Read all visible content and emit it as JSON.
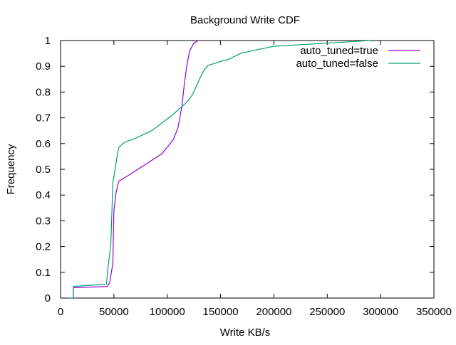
{
  "chart_data": {
    "type": "line",
    "title": "Background Write CDF",
    "xlabel": "Write KB/s",
    "ylabel": "Frequency",
    "xlim": [
      0,
      350000
    ],
    "ylim": [
      0,
      1
    ],
    "xticks": [
      "0",
      "50000",
      "100000",
      "150000",
      "200000",
      "250000",
      "300000",
      "350000"
    ],
    "xtick_values": [
      0,
      50000,
      100000,
      150000,
      200000,
      250000,
      300000,
      350000
    ],
    "yticks": [
      "0",
      "0.1",
      "0.2",
      "0.3",
      "0.4",
      "0.5",
      "0.6",
      "0.7",
      "0.8",
      "0.9",
      "1"
    ],
    "ytick_values": [
      0,
      0.1,
      0.2,
      0.3,
      0.4,
      0.5,
      0.6,
      0.7,
      0.8,
      0.9,
      1
    ],
    "grid": false,
    "legend_position": "top-right",
    "series": [
      {
        "name": "auto_tuned=true",
        "color": "#9400d3",
        "x": [
          8000,
          12000,
          12000,
          44000,
          46000,
          49000,
          49500,
          50000,
          52000,
          54500,
          65000,
          80000,
          95000,
          105500,
          110000,
          113700,
          116000,
          118200,
          121000,
          125000,
          129000
        ],
        "y": [
          0,
          0,
          0.04,
          0.045,
          0.06,
          0.135,
          0.24,
          0.34,
          0.41,
          0.453,
          0.48,
          0.52,
          0.56,
          0.614,
          0.66,
          0.743,
          0.83,
          0.9,
          0.96,
          0.99,
          1.0
        ]
      },
      {
        "name": "auto_tuned=false",
        "color": "#009e73",
        "x": [
          8000,
          12000,
          12000,
          30000,
          43000,
          44900,
          47000,
          49100,
          50900,
          53000,
          54700,
          60000,
          70000,
          85500,
          103600,
          113700,
          118000,
          123800,
          130500,
          134500,
          138400,
          145000,
          150700,
          157500,
          168700,
          185000,
          200000,
          238000,
          270000,
          290000
        ],
        "y": [
          0,
          0,
          0.045,
          0.05,
          0.054,
          0.135,
          0.2,
          0.45,
          0.494,
          0.55,
          0.586,
          0.605,
          0.62,
          0.65,
          0.707,
          0.743,
          0.76,
          0.79,
          0.853,
          0.885,
          0.904,
          0.912,
          0.92,
          0.927,
          0.95,
          0.965,
          0.978,
          0.987,
          0.995,
          1.0
        ]
      }
    ]
  }
}
